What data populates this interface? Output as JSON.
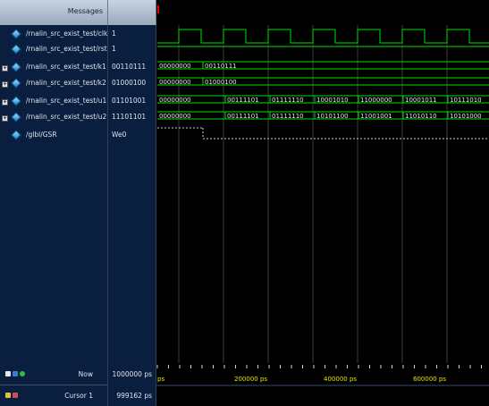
{
  "header": {
    "messages": "Messages"
  },
  "signals": [
    {
      "name": "/rnalin_src_exist_test/clk",
      "value": "1",
      "expandable": false
    },
    {
      "name": "/rnalin_src_exist_test/rst",
      "value": "1",
      "expandable": false
    },
    {
      "name": "/rnalin_src_exist_test/k1",
      "value": "00110111",
      "expandable": true
    },
    {
      "name": "/rnalin_src_exist_test/k2",
      "value": "01000100",
      "expandable": true
    },
    {
      "name": "/rnalin_src_exist_test/u1",
      "value": "01101001",
      "expandable": true
    },
    {
      "name": "/rnalin_src_exist_test/u2",
      "value": "11101101",
      "expandable": true
    },
    {
      "name": "/glbl/GSR",
      "value": "We0",
      "expandable": false
    }
  ],
  "waves": {
    "k1": [
      "00000000",
      "00110111"
    ],
    "k2": [
      "00000000",
      "01000100"
    ],
    "u1": [
      "00000000",
      "00111101",
      "01111110",
      "10001010",
      "11000000",
      "10001011",
      "10111010"
    ],
    "u2": [
      "00000000",
      "00111101",
      "01111110",
      "10101100",
      "11001001",
      "11010110",
      "10101000"
    ]
  },
  "footer": {
    "now_label": "Now",
    "now_value": "1000000 ps",
    "cursor_label": "Cursor 1",
    "cursor_value": "999162 ps",
    "tick_labels": [
      "ps",
      "200000 ps",
      "400000 ps",
      "600000 ps"
    ]
  },
  "colors": {
    "wave": "#00e000",
    "cursor": "#e02020",
    "tick_text": "#e6e600"
  }
}
